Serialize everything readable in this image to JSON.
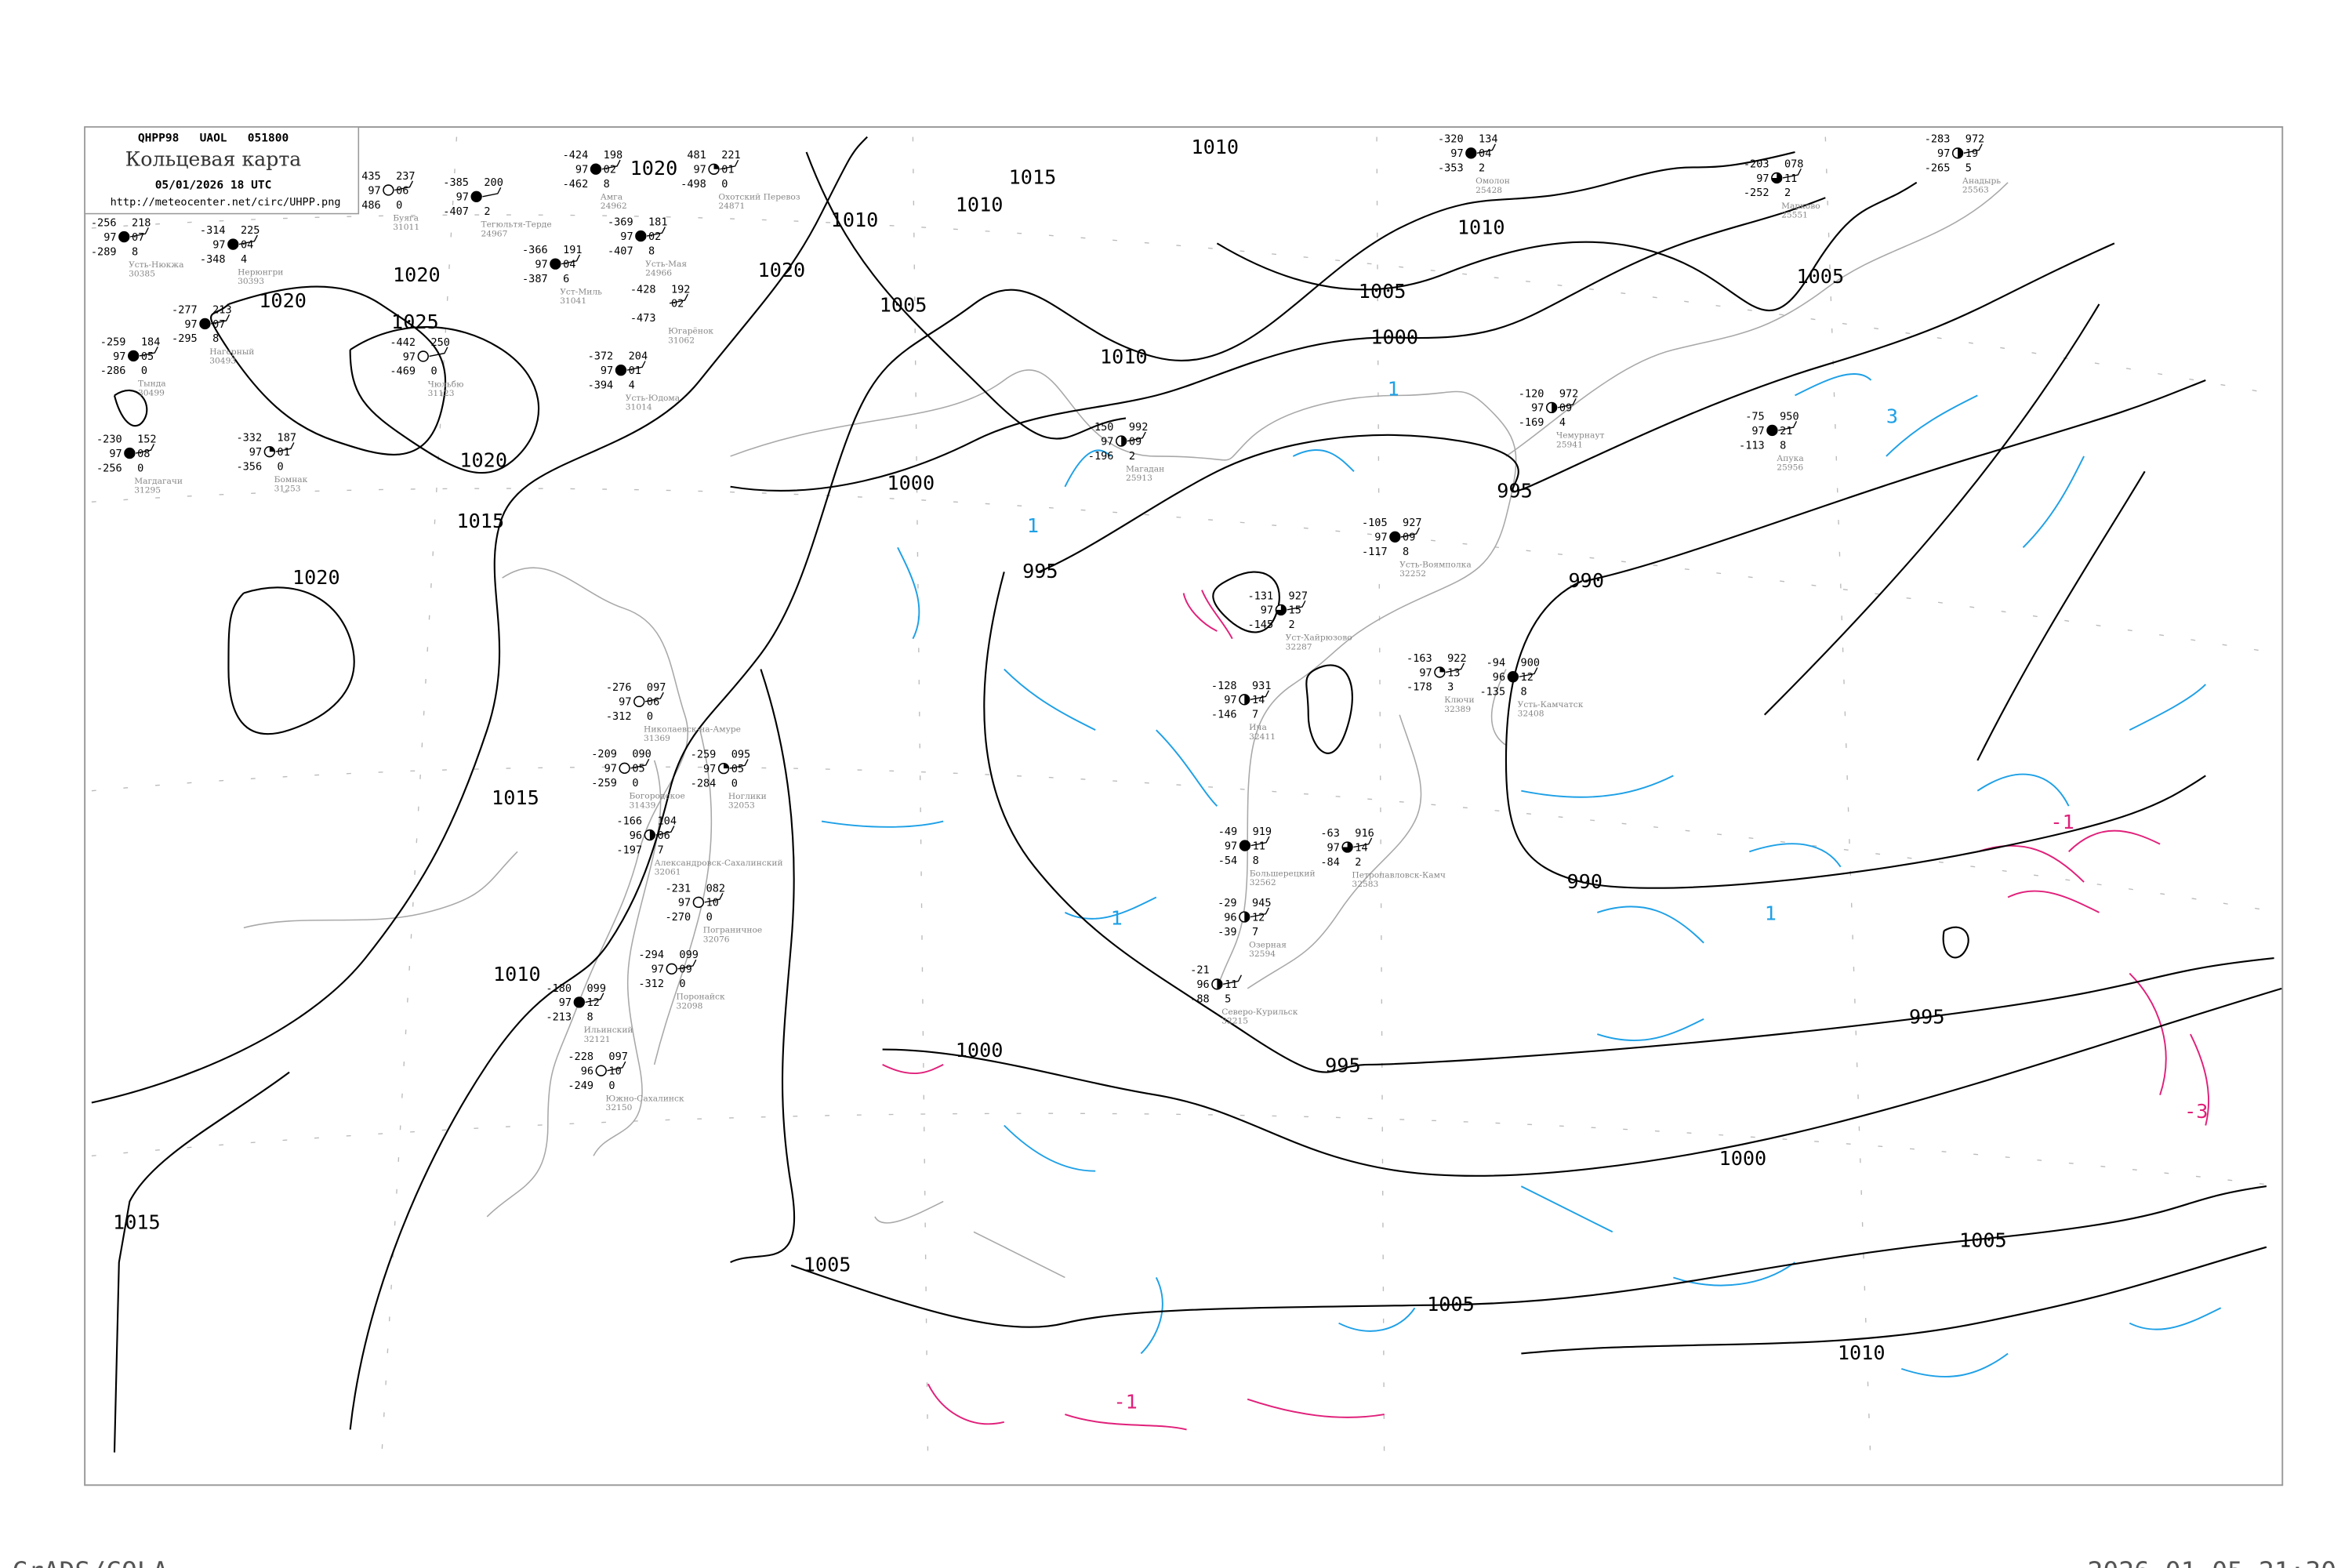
{
  "header": {
    "code_line": "QHPP98   UAOL   051800",
    "title": "Кольцевая карта",
    "datetime": "05/01/2026 18 UTC",
    "url": "http://meteocenter.net/circ/UHPP.png"
  },
  "footer": {
    "left": "GrADS/COLA",
    "right": "2026-01-05-21:30"
  },
  "colors": {
    "isobar": "#000000",
    "coastline": "#a8a8a8",
    "isotherm_positive": "#1ea0e6",
    "isotherm_negative": "#e0207a",
    "precip_marker": "#3399ff",
    "station_name": "#888888"
  },
  "isobar_labels": {
    "l1020a": "1020",
    "l1020b": "1020",
    "l1020c": "1020",
    "l1020d": "1020",
    "l1020e": "1020",
    "l1020f": "1020",
    "l1025": "1025",
    "l1015a": "1015",
    "l1015b": "1015",
    "l1015c": "1015",
    "l1015d": "1015",
    "l1010a": "1010",
    "l1010b": "1010",
    "l1010c": "1010",
    "l1010d": "1010",
    "l1010e": "1010",
    "l1010f": "1010",
    "l1010g": "1010",
    "l1005a": "1005",
    "l1005b": "1005",
    "l1005c": "1005",
    "l1005d": "1005",
    "l1005e": "1005",
    "l1005f": "1005",
    "l1000a": "1000",
    "l1000b": "1000",
    "l1000c": "1000",
    "l1000d": "1000",
    "l995a": "995",
    "l995b": "995",
    "l995c": "995",
    "l995d": "995",
    "l990a": "990",
    "l990b": "990"
  },
  "isotherm_labels": {
    "t1a": "1",
    "t1b": "1",
    "t1c": "1",
    "t1d": "1",
    "t3a": "3",
    "tm1a": "-1",
    "tm1b": "-1",
    "tm3": "-3"
  },
  "stations": [
    {
      "name": "Усть-Нюкжа",
      "id": "30385",
      "tl": "-256",
      "ml": "97",
      "bl": "-289",
      "tr": "218",
      "mr": "07",
      "br": "8",
      "cover": "full"
    },
    {
      "name": "Нерюнгри",
      "id": "30393",
      "tl": "-314",
      "ml": "97",
      "bl": "-348",
      "tr": "225",
      "mr": "04",
      "br": "4",
      "cover": "full"
    },
    {
      "name": "Нагорный",
      "id": "30493",
      "tl": "-277",
      "ml": "97",
      "bl": "-295",
      "tr": "213",
      "mr": "07",
      "br": "8",
      "cover": "full"
    },
    {
      "name": "Тында",
      "id": "30499",
      "tl": "-259",
      "ml": "97",
      "bl": "-286",
      "tr": "184",
      "mr": "05",
      "br": "0",
      "cover": "full"
    },
    {
      "name": "Магдагачи",
      "id": "31295",
      "tl": "-230",
      "ml": "97",
      "bl": "-256",
      "tr": "152",
      "mr": "08",
      "br": "0",
      "cover": "full"
    },
    {
      "name": "Бомнак",
      "id": "31253",
      "tl": "-332",
      "ml": "97",
      "bl": "-356",
      "tr": "187",
      "mr": "01",
      "br": "0",
      "cover": "quarter"
    },
    {
      "name": "Буяга",
      "id": "31011",
      "tl": "435",
      "ml": "97",
      "bl": "486",
      "tr": "237",
      "mr": "06",
      "br": "0",
      "cover": "empty"
    },
    {
      "name": "Тегюльтя-Терде",
      "id": "24967",
      "tl": "-385",
      "ml": "97",
      "bl": "-407",
      "tr": "200",
      "mr": "",
      "br": "2",
      "cover": "full"
    },
    {
      "name": "Амга",
      "id": "24962",
      "tl": "-424",
      "ml": "97",
      "bl": "-462",
      "tr": "198",
      "mr": "02",
      "br": "8",
      "cover": "full"
    },
    {
      "name": "Охотский Перевоз",
      "id": "24871",
      "tl": "481",
      "ml": "97",
      "bl": "-498",
      "tr": "221",
      "mr": "01",
      "br": "0",
      "cover": "quarter"
    },
    {
      "name": "Усть-Мая",
      "id": "24966",
      "tl": "-369",
      "ml": "97",
      "bl": "-407",
      "tr": "181",
      "mr": "02",
      "br": "8",
      "cover": "full"
    },
    {
      "name": "Уст-Миль",
      "id": "31041",
      "tl": "-366",
      "ml": "97",
      "bl": "-387",
      "tr": "191",
      "mr": "04",
      "br": "6",
      "cover": "full"
    },
    {
      "name": "Усть-Юдома",
      "id": "31014",
      "tl": "-372",
      "ml": "97",
      "bl": "-394",
      "tr": "204",
      "mr": "01",
      "br": "4",
      "cover": "full"
    },
    {
      "name": "Чюльбю",
      "id": "31123",
      "tl": "-442",
      "ml": "97",
      "bl": "-469",
      "tr": "250",
      "mr": "",
      "br": "0",
      "cover": "empty"
    },
    {
      "name": "Югарёнок",
      "id": "31062",
      "tl": "-428",
      "ml": "",
      "bl": "-473",
      "tr": "192",
      "mr": "02",
      "br": "",
      "cover": "none"
    },
    {
      "name": "Омолон",
      "id": "25428",
      "tl": "-320",
      "ml": "97",
      "bl": "-353",
      "tr": "134",
      "mr": "04",
      "br": "2",
      "cover": "full"
    },
    {
      "name": "Марково",
      "id": "25551",
      "tl": "-203",
      "ml": "97",
      "bl": "-252",
      "tr": "078",
      "mr": "11",
      "br": "2",
      "cover": "three-quarter"
    },
    {
      "name": "Анадырь",
      "id": "25563",
      "tl": "-283",
      "ml": "97",
      "bl": "-265",
      "tr": "972",
      "mr": "19",
      "br": "5",
      "cover": "half"
    },
    {
      "name": "Магадан",
      "id": "25913",
      "tl": "-150",
      "ml": "97",
      "bl": "-196",
      "tr": "992",
      "mr": "09",
      "br": "2",
      "cover": "half"
    },
    {
      "name": "Чемурнаут",
      "id": "25941",
      "tl": "-120",
      "ml": "97",
      "bl": "-169",
      "tr": "972",
      "mr": "09",
      "br": "4",
      "cover": "half"
    },
    {
      "name": "Апука",
      "id": "25956",
      "tl": "-75",
      "ml": "97",
      "bl": "-113",
      "tr": "950",
      "mr": "21",
      "br": "8",
      "cover": "full"
    },
    {
      "name": "Усть-Воямполка",
      "id": "32252",
      "tl": "-105",
      "ml": "97",
      "bl": "-117",
      "tr": "927",
      "mr": "09",
      "br": "8",
      "cover": "full"
    },
    {
      "name": "Уст-Хайрюзово",
      "id": "32287",
      "tl": "-131",
      "ml": "97",
      "bl": "-145",
      "tr": "927",
      "mr": "15",
      "br": "2",
      "cover": "three-quarter"
    },
    {
      "name": "Ича",
      "id": "32411",
      "tl": "-128",
      "ml": "97",
      "bl": "-146",
      "tr": "931",
      "mr": "14",
      "br": "7",
      "cover": "half"
    },
    {
      "name": "Ключи",
      "id": "32389",
      "tl": "-163",
      "ml": "97",
      "bl": "-178",
      "tr": "922",
      "mr": "13",
      "br": "3",
      "cover": "quarter"
    },
    {
      "name": "Усть-Камчатск",
      "id": "32408",
      "tl": "-94",
      "ml": "96",
      "bl": "-135",
      "tr": "900",
      "mr": "12",
      "br": "8",
      "cover": "full"
    },
    {
      "name": "Большерецкий",
      "id": "32562",
      "tl": "-49",
      "ml": "97",
      "bl": "-54",
      "tr": "919",
      "mr": "11",
      "br": "8",
      "cover": "full"
    },
    {
      "name": "Петропавловск-Камч",
      "id": "32583",
      "tl": "-63",
      "ml": "97",
      "bl": "-84",
      "tr": "916",
      "mr": "14",
      "br": "2",
      "cover": "three-quarter"
    },
    {
      "name": "Озерная",
      "id": "32594",
      "tl": "-29",
      "ml": "96",
      "bl": "-39",
      "tr": "945",
      "mr": "12",
      "br": "7",
      "cover": "half"
    },
    {
      "name": "Северо-Курильск",
      "id": "32215",
      "tl": "-21",
      "ml": "96",
      "bl": "-88",
      "tr": "",
      "mr": "11",
      "br": "5",
      "cover": "half"
    },
    {
      "name": "Николаевск-на-Амуре",
      "id": "31369",
      "tl": "-276",
      "ml": "97",
      "bl": "-312",
      "tr": "097",
      "mr": "06",
      "br": "0",
      "cover": "empty"
    },
    {
      "name": "Богородское",
      "id": "31439",
      "tl": "-209",
      "ml": "97",
      "bl": "-259",
      "tr": "090",
      "mr": "05",
      "br": "0",
      "cover": "empty"
    },
    {
      "name": "Ноглики",
      "id": "32053",
      "tl": "-259",
      "ml": "97",
      "bl": "-284",
      "tr": "095",
      "mr": "05",
      "br": "0",
      "cover": "quarter"
    },
    {
      "name": "Александровск-Сахалинский",
      "id": "32061",
      "tl": "-166",
      "ml": "96",
      "bl": "-197",
      "tr": "104",
      "mr": "06",
      "br": "7",
      "cover": "half"
    },
    {
      "name": "Пограничное",
      "id": "32076",
      "tl": "-231",
      "ml": "97",
      "bl": "-270",
      "tr": "082",
      "mr": "10",
      "br": "0",
      "cover": "empty"
    },
    {
      "name": "Поронайск",
      "id": "32098",
      "tl": "-294",
      "ml": "97",
      "bl": "-312",
      "tr": "099",
      "mr": "09",
      "br": "0",
      "cover": "empty"
    },
    {
      "name": "Ильинский",
      "id": "32121",
      "tl": "-180",
      "ml": "97",
      "bl": "-213",
      "tr": "099",
      "mr": "12",
      "br": "8",
      "cover": "full"
    },
    {
      "name": "Южно-Сахалинск",
      "id": "32150",
      "tl": "-228",
      "ml": "96",
      "bl": "-249",
      "tr": "097",
      "mr": "10",
      "br": "0",
      "cover": "empty"
    }
  ]
}
